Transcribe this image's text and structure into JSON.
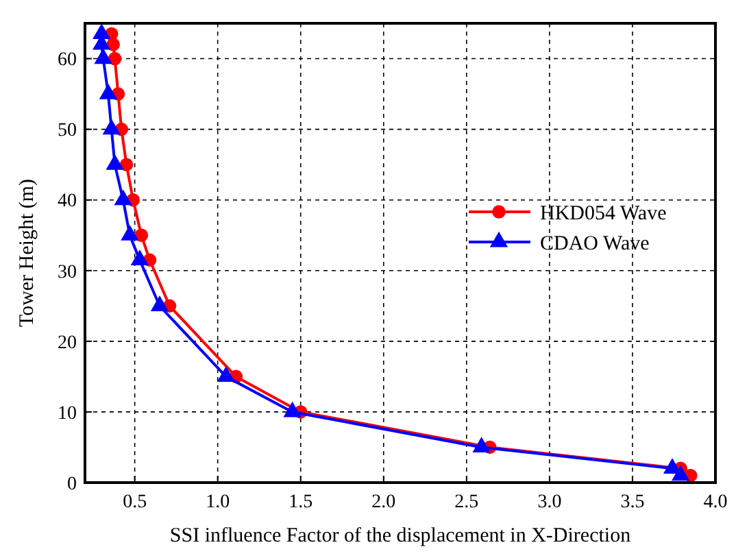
{
  "chart_data": {
    "type": "line",
    "xlabel": "SSI influence Factor of the displacement in X-Direction",
    "ylabel": "Tower Height (m)",
    "xlim": [
      0.2,
      4.0
    ],
    "xticks": [
      {
        "value": 0.5,
        "label": "0.5"
      },
      {
        "value": 1,
        "label": "1.0"
      },
      {
        "value": 1.5,
        "label": "1.5"
      },
      {
        "value": 2,
        "label": "2.0"
      },
      {
        "value": 2.5,
        "label": "2.5"
      },
      {
        "value": 3,
        "label": "3.0"
      },
      {
        "value": 3.5,
        "label": "3.5"
      },
      {
        "value": 4,
        "label": "4.0"
      }
    ],
    "ylim": [
      0,
      65
    ],
    "yticks": [
      0,
      10,
      20,
      30,
      40,
      50,
      60
    ],
    "grid": true,
    "legend": "right",
    "series": [
      {
        "name": "HKD054 Wave",
        "color": "#ff0000",
        "marker": "circle",
        "x": [
          0.36,
          0.37,
          0.38,
          0.4,
          0.42,
          0.45,
          0.49,
          0.54,
          0.59,
          0.71,
          1.11,
          1.5,
          2.64,
          3.79,
          3.85
        ],
        "values": [
          63.5,
          62,
          60,
          55,
          50,
          45,
          40,
          35,
          31.5,
          25,
          15,
          10,
          5,
          2,
          1
        ]
      },
      {
        "name": "CDAO Wave",
        "color": "#0000ff",
        "marker": "triangle",
        "x": [
          0.3,
          0.3,
          0.31,
          0.34,
          0.36,
          0.38,
          0.43,
          0.47,
          0.53,
          0.65,
          1.05,
          1.45,
          2.59,
          3.74,
          3.79
        ],
        "values": [
          63.5,
          62,
          60,
          55,
          50,
          45,
          40,
          35,
          31.5,
          25,
          15,
          10,
          5,
          2,
          1
        ]
      }
    ]
  }
}
